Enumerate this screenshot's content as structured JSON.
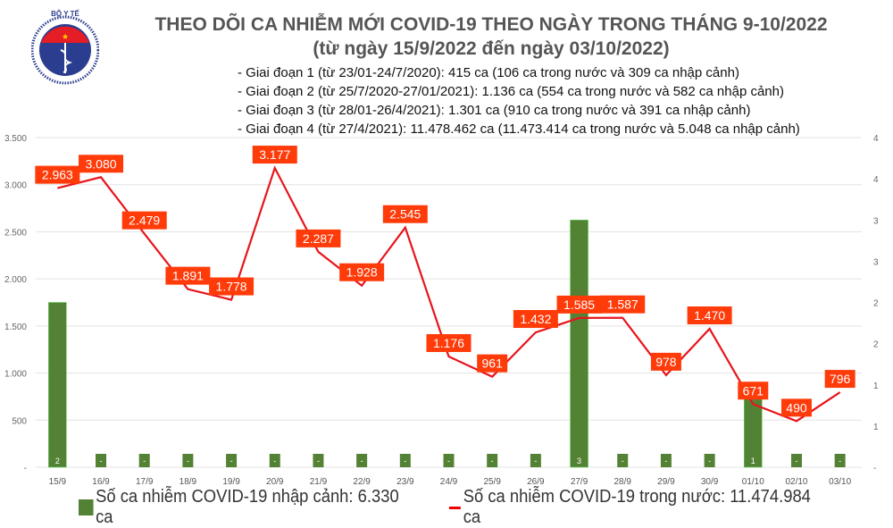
{
  "logo": {
    "text_top": "BỘ Y TẾ",
    "text_bottom": "MINISTRY OF HEALTH"
  },
  "title": [
    "THEO DÕI CA NHIỄM MỚI COVID-19 THEO NGÀY TRONG THÁNG 9-10/2022",
    "(từ ngày 15/9/2022 đến ngày 03/10/2022)"
  ],
  "notes": [
    "- Giai đoạn 1 (từ 23/01-24/7/2020): 415 ca (106 ca trong nước và 309 ca nhập cảnh)",
    "- Giai đoạn 2 (từ 25/7/2020-27/01/2021): 1.136 ca (554 ca trong nước và 582 ca nhập cảnh)",
    "- Giai đoạn 3 (từ 28/01-26/4/2021): 1.301 ca (910 ca trong nước và 391 ca nhập cảnh)",
    "- Giai đoạn 4 (từ 27/4/2021): 11.478.462 ca (11.473.414 ca trong nước và 5.048 ca nhập cảnh)"
  ],
  "chart_data": {
    "type": "bar+line",
    "categories": [
      "15/9",
      "16/9",
      "17/9",
      "18/9",
      "19/9",
      "20/9",
      "21/9",
      "22/9",
      "23/9",
      "24/9",
      "25/9",
      "26/9",
      "27/9",
      "28/9",
      "29/9",
      "30/9",
      "01/10",
      "02/10",
      "03/10"
    ],
    "series": [
      {
        "name": "Số ca nhiễm COVID-19 nhập cảnh: 6.330 ca",
        "type": "bar",
        "axis": "right",
        "color": "#548235",
        "values": [
          2,
          0,
          0,
          0,
          0,
          0,
          0,
          0,
          0,
          0,
          0,
          0,
          3,
          0,
          0,
          0,
          1,
          0,
          0
        ]
      },
      {
        "name": "Số ca nhiễm COVID-19 trong nước: 11.474.984 ca",
        "type": "line",
        "axis": "left",
        "color": "#e8141b",
        "values": [
          2963,
          3080,
          2479,
          1891,
          1778,
          3177,
          2287,
          1928,
          2545,
          1176,
          961,
          1432,
          1585,
          1587,
          978,
          1470,
          671,
          490,
          796
        ]
      }
    ],
    "left_axis": {
      "ylim": [
        0,
        3500
      ],
      "ticks": [
        "-",
        "500",
        "1.000",
        "1.500",
        "2.000",
        "2.500",
        "3.000",
        "3.500"
      ]
    },
    "right_axis": {
      "ylim": [
        0,
        4
      ],
      "ticks": [
        "-",
        "1",
        "1",
        "2",
        "2",
        "3",
        "3",
        "4",
        "4"
      ]
    },
    "bar_labels": [
      "2",
      "-",
      "-",
      "-",
      "-",
      "-",
      "-",
      "-",
      "-",
      "-",
      "-",
      "-",
      "3",
      "-",
      "-",
      "-",
      "1",
      "-",
      "-"
    ],
    "line_labels": [
      "2.963",
      "3.080",
      "2.479",
      "1.891",
      "1.778",
      "3.177",
      "2.287",
      "1.928",
      "2.545",
      "1.176",
      "961",
      "1.432",
      "1.585",
      "1.587",
      "978",
      "1.470",
      "671",
      "490",
      "796"
    ],
    "label_color": "#ff3b0a",
    "grid": true,
    "legend": "bottom"
  }
}
